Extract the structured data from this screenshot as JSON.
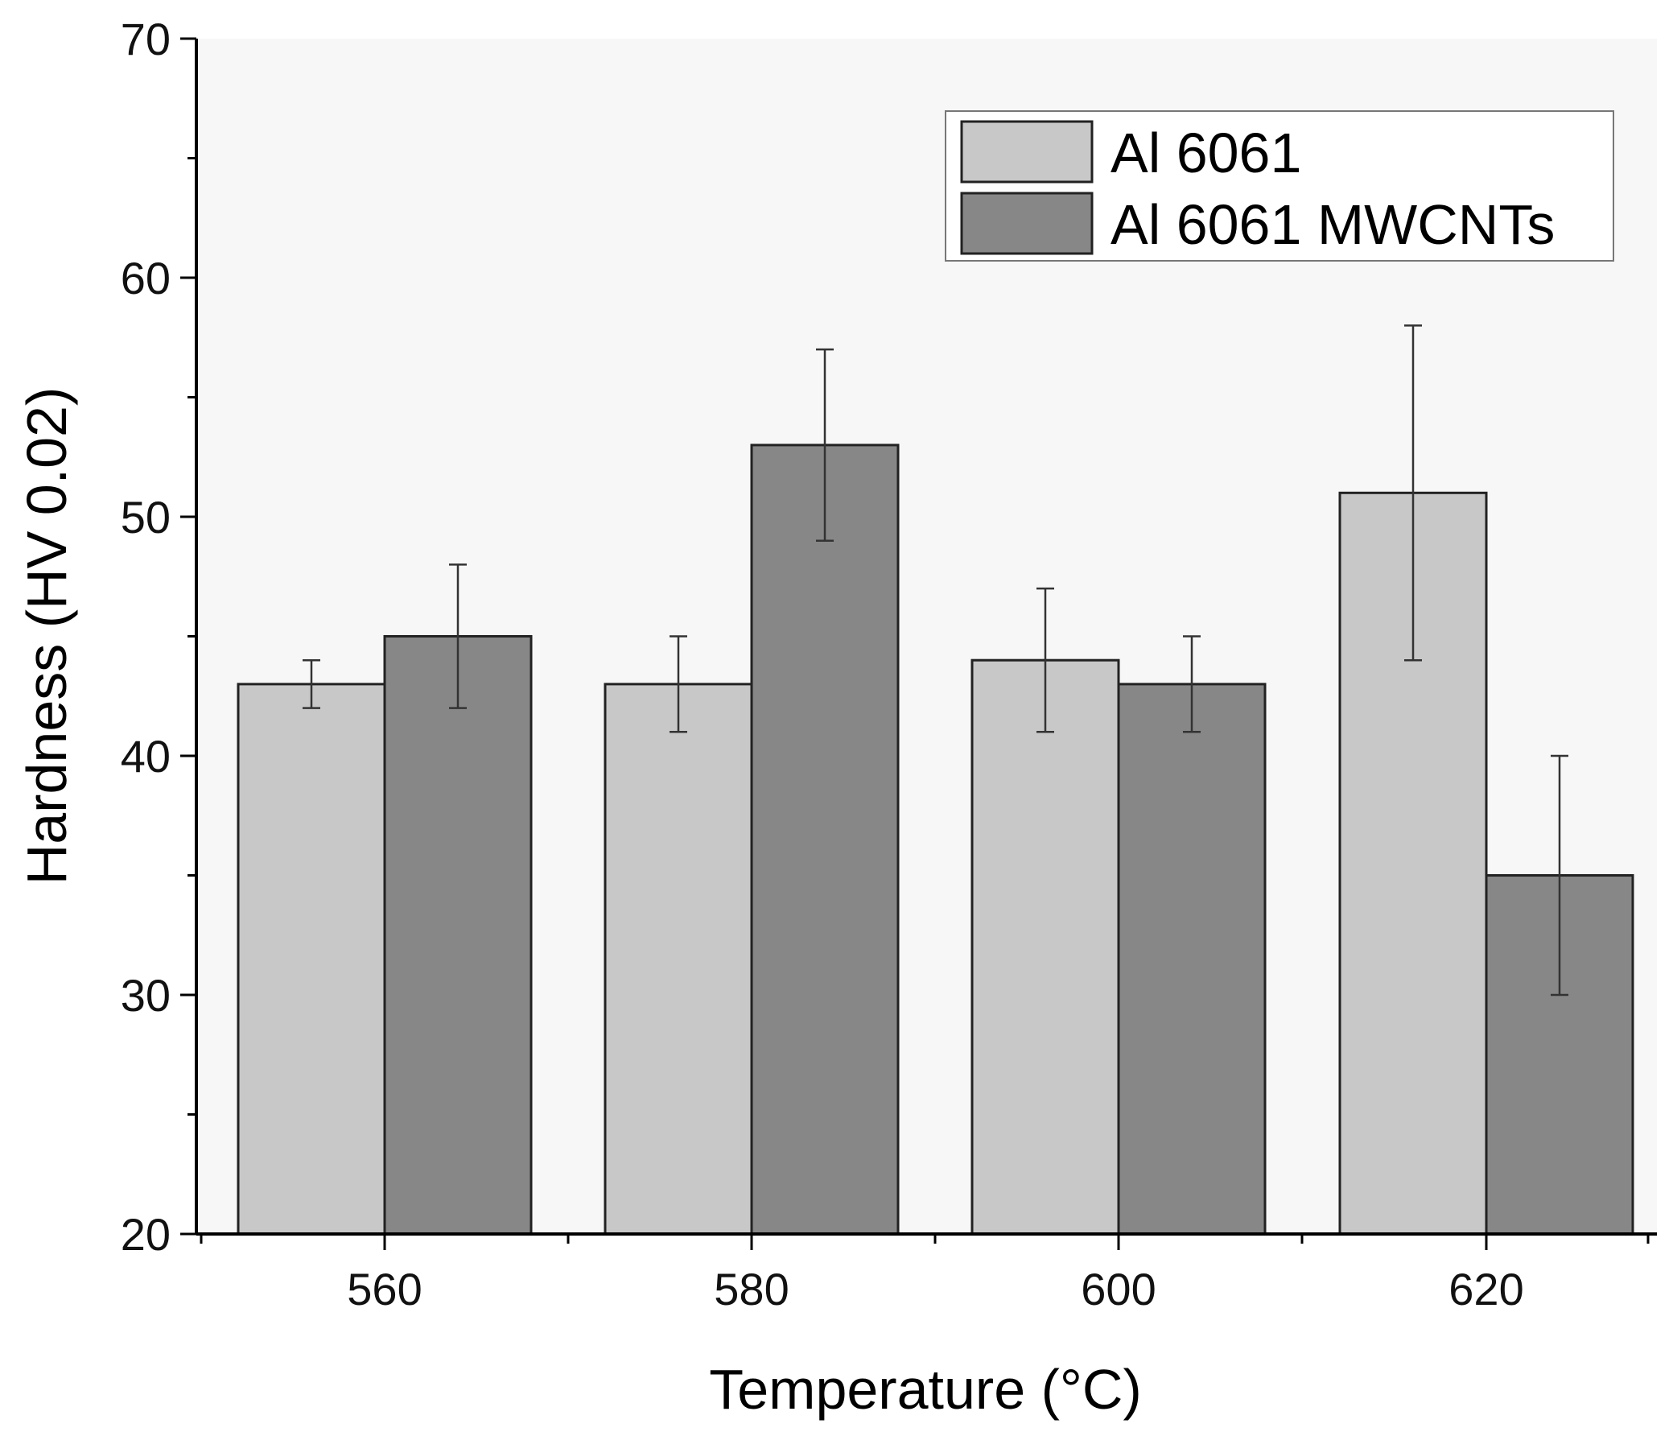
{
  "chart_data": {
    "type": "bar",
    "title": "",
    "xlabel": "Temperature (°C)",
    "ylabel": "Hardness (HV 0.02)",
    "categories": [
      "560",
      "580",
      "600",
      "620"
    ],
    "ylim": [
      20,
      70
    ],
    "yticks": [
      20,
      30,
      40,
      50,
      60,
      70
    ],
    "grid": false,
    "legend_position": "top-right",
    "series": [
      {
        "name": "Al 6061",
        "color": "#c8c8c8",
        "values": [
          43,
          43,
          44,
          51
        ],
        "error_low": [
          42,
          41,
          41,
          44
        ],
        "error_high": [
          44,
          45,
          47,
          58
        ]
      },
      {
        "name": "Al 6061 MWCNTs",
        "color": "#878787",
        "values": [
          45,
          53,
          43,
          35
        ],
        "error_low": [
          42,
          49,
          41,
          30
        ],
        "error_high": [
          48,
          57,
          45,
          40
        ]
      }
    ]
  }
}
